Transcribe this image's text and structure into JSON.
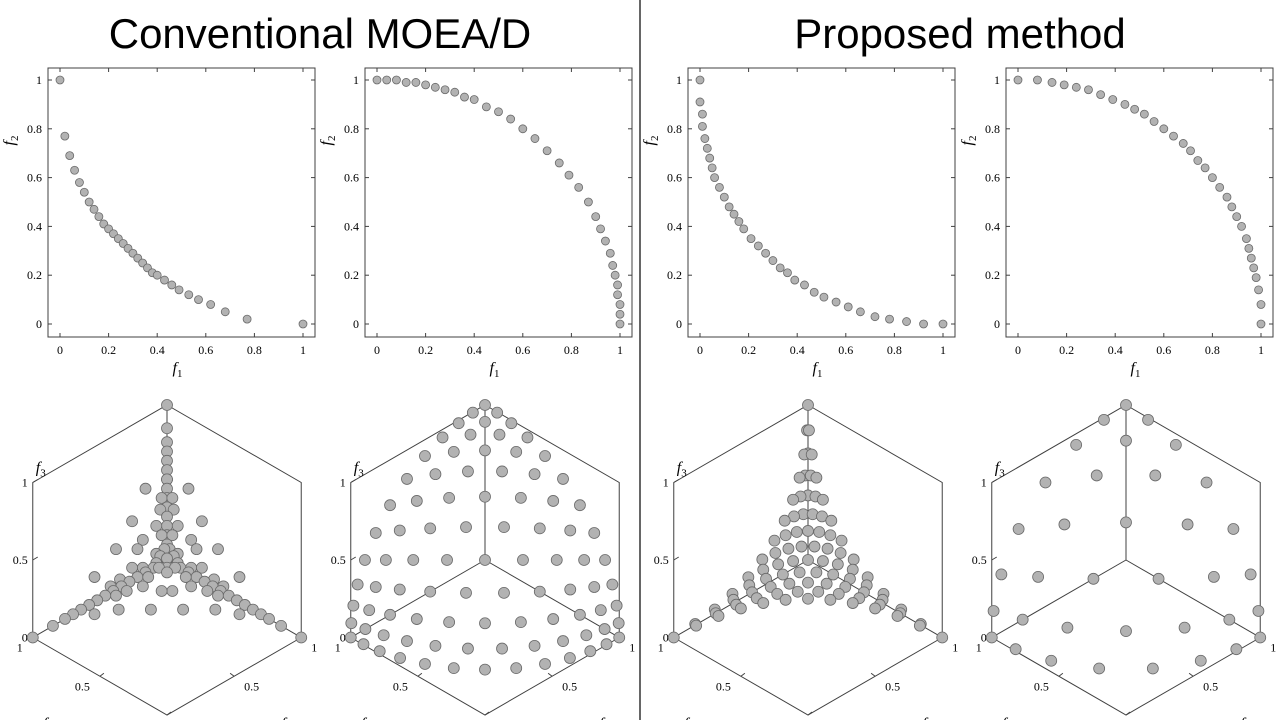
{
  "titles": {
    "left": "Conventional MOEA/D",
    "right": "Proposed method"
  },
  "labels": {
    "f1": "f",
    "f1_sub": "1",
    "f2": "f",
    "f2_sub": "2",
    "f3": "f",
    "f3_sub": "3"
  },
  "chart_data": [
    {
      "type": "scatter",
      "group": "Conventional MOEA/D",
      "xlabel": "f1",
      "ylabel": "f2",
      "xlim": [
        0,
        1
      ],
      "ylim": [
        0,
        1
      ],
      "xticks": [
        0,
        0.2,
        0.4,
        0.6,
        0.8,
        1
      ],
      "yticks": [
        0,
        0.2,
        0.4,
        0.6,
        0.8,
        1
      ],
      "grid": false,
      "points": [
        [
          0,
          1
        ],
        [
          0.02,
          0.77
        ],
        [
          0.04,
          0.69
        ],
        [
          0.06,
          0.63
        ],
        [
          0.08,
          0.58
        ],
        [
          0.1,
          0.54
        ],
        [
          0.12,
          0.5
        ],
        [
          0.14,
          0.47
        ],
        [
          0.16,
          0.44
        ],
        [
          0.18,
          0.41
        ],
        [
          0.2,
          0.39
        ],
        [
          0.22,
          0.37
        ],
        [
          0.24,
          0.35
        ],
        [
          0.26,
          0.33
        ],
        [
          0.28,
          0.31
        ],
        [
          0.3,
          0.29
        ],
        [
          0.32,
          0.27
        ],
        [
          0.34,
          0.25
        ],
        [
          0.36,
          0.23
        ],
        [
          0.38,
          0.21
        ],
        [
          0.4,
          0.2
        ],
        [
          0.43,
          0.18
        ],
        [
          0.46,
          0.16
        ],
        [
          0.49,
          0.14
        ],
        [
          0.53,
          0.12
        ],
        [
          0.57,
          0.1
        ],
        [
          0.62,
          0.08
        ],
        [
          0.68,
          0.05
        ],
        [
          0.77,
          0.02
        ],
        [
          1,
          0
        ]
      ]
    },
    {
      "type": "scatter",
      "group": "Conventional MOEA/D",
      "xlabel": "f1",
      "ylabel": "f2",
      "xlim": [
        0,
        1
      ],
      "ylim": [
        0,
        1
      ],
      "xticks": [
        0,
        0.2,
        0.4,
        0.6,
        0.8,
        1
      ],
      "yticks": [
        0,
        0.2,
        0.4,
        0.6,
        0.8,
        1
      ],
      "grid": false,
      "points": [
        [
          0,
          1
        ],
        [
          0.04,
          1
        ],
        [
          0.08,
          1
        ],
        [
          0.12,
          0.99
        ],
        [
          0.16,
          0.99
        ],
        [
          0.2,
          0.98
        ],
        [
          0.24,
          0.97
        ],
        [
          0.28,
          0.96
        ],
        [
          0.32,
          0.95
        ],
        [
          0.36,
          0.93
        ],
        [
          0.4,
          0.92
        ],
        [
          0.45,
          0.89
        ],
        [
          0.5,
          0.87
        ],
        [
          0.55,
          0.84
        ],
        [
          0.6,
          0.8
        ],
        [
          0.65,
          0.76
        ],
        [
          0.7,
          0.71
        ],
        [
          0.75,
          0.66
        ],
        [
          0.79,
          0.61
        ],
        [
          0.83,
          0.56
        ],
        [
          0.87,
          0.5
        ],
        [
          0.9,
          0.44
        ],
        [
          0.92,
          0.39
        ],
        [
          0.94,
          0.34
        ],
        [
          0.96,
          0.29
        ],
        [
          0.97,
          0.24
        ],
        [
          0.98,
          0.2
        ],
        [
          0.99,
          0.16
        ],
        [
          0.99,
          0.12
        ],
        [
          1,
          0.08
        ],
        [
          1,
          0.04
        ],
        [
          1,
          0
        ]
      ]
    },
    {
      "type": "scatter",
      "group": "Proposed method",
      "xlabel": "f1",
      "ylabel": "f2",
      "xlim": [
        0,
        1
      ],
      "ylim": [
        0,
        1
      ],
      "xticks": [
        0,
        0.2,
        0.4,
        0.6,
        0.8,
        1
      ],
      "yticks": [
        0,
        0.2,
        0.4,
        0.6,
        0.8,
        1
      ],
      "grid": false,
      "points": [
        [
          0,
          1
        ],
        [
          0,
          0.91
        ],
        [
          0.01,
          0.86
        ],
        [
          0.01,
          0.81
        ],
        [
          0.02,
          0.76
        ],
        [
          0.03,
          0.72
        ],
        [
          0.04,
          0.68
        ],
        [
          0.05,
          0.64
        ],
        [
          0.06,
          0.6
        ],
        [
          0.08,
          0.56
        ],
        [
          0.1,
          0.52
        ],
        [
          0.12,
          0.48
        ],
        [
          0.14,
          0.45
        ],
        [
          0.16,
          0.42
        ],
        [
          0.18,
          0.39
        ],
        [
          0.21,
          0.35
        ],
        [
          0.24,
          0.32
        ],
        [
          0.27,
          0.29
        ],
        [
          0.3,
          0.26
        ],
        [
          0.33,
          0.23
        ],
        [
          0.36,
          0.21
        ],
        [
          0.39,
          0.18
        ],
        [
          0.43,
          0.16
        ],
        [
          0.47,
          0.13
        ],
        [
          0.51,
          0.11
        ],
        [
          0.56,
          0.09
        ],
        [
          0.61,
          0.07
        ],
        [
          0.66,
          0.05
        ],
        [
          0.72,
          0.03
        ],
        [
          0.78,
          0.02
        ],
        [
          0.85,
          0.01
        ],
        [
          0.92,
          0
        ],
        [
          1,
          0
        ]
      ]
    },
    {
      "type": "scatter",
      "group": "Proposed method",
      "xlabel": "f1",
      "ylabel": "f2",
      "xlim": [
        0,
        1
      ],
      "ylim": [
        0,
        1
      ],
      "xticks": [
        0,
        0.2,
        0.4,
        0.6,
        0.8,
        1
      ],
      "yticks": [
        0,
        0.2,
        0.4,
        0.6,
        0.8,
        1
      ],
      "grid": false,
      "points": [
        [
          0,
          1
        ],
        [
          0.08,
          1
        ],
        [
          0.14,
          0.99
        ],
        [
          0.19,
          0.98
        ],
        [
          0.24,
          0.97
        ],
        [
          0.29,
          0.96
        ],
        [
          0.34,
          0.94
        ],
        [
          0.39,
          0.92
        ],
        [
          0.44,
          0.9
        ],
        [
          0.48,
          0.88
        ],
        [
          0.52,
          0.86
        ],
        [
          0.56,
          0.83
        ],
        [
          0.6,
          0.8
        ],
        [
          0.64,
          0.77
        ],
        [
          0.68,
          0.74
        ],
        [
          0.71,
          0.71
        ],
        [
          0.74,
          0.67
        ],
        [
          0.77,
          0.64
        ],
        [
          0.8,
          0.6
        ],
        [
          0.83,
          0.56
        ],
        [
          0.86,
          0.52
        ],
        [
          0.88,
          0.48
        ],
        [
          0.9,
          0.44
        ],
        [
          0.92,
          0.4
        ],
        [
          0.94,
          0.35
        ],
        [
          0.95,
          0.31
        ],
        [
          0.96,
          0.27
        ],
        [
          0.97,
          0.23
        ],
        [
          0.98,
          0.19
        ],
        [
          0.99,
          0.14
        ],
        [
          1,
          0.08
        ],
        [
          1,
          0
        ]
      ]
    },
    {
      "type": "scatter3d",
      "group": "Conventional MOEA/D",
      "front": "linear",
      "view": "isometric",
      "xlabel": "f1",
      "ylabel": "f2",
      "zlabel": "f3",
      "zticks": [
        0,
        0.5,
        1
      ],
      "f1ticks": [
        0.5,
        1
      ],
      "f2ticks": [
        0,
        0.5,
        1
      ],
      "points": [
        [
          0,
          0,
          1
        ],
        [
          1,
          0,
          0
        ],
        [
          0,
          1,
          0
        ],
        [
          0.05,
          0.05,
          0.9
        ],
        [
          0.08,
          0.08,
          0.84
        ],
        [
          0.1,
          0.1,
          0.8
        ],
        [
          0.12,
          0.12,
          0.76
        ],
        [
          0.14,
          0.14,
          0.72
        ],
        [
          0.16,
          0.16,
          0.68
        ],
        [
          0.18,
          0.18,
          0.64
        ],
        [
          0.2,
          0.2,
          0.6
        ],
        [
          0.22,
          0.22,
          0.56
        ],
        [
          0.24,
          0.24,
          0.52
        ],
        [
          0.26,
          0.26,
          0.48
        ],
        [
          0.28,
          0.28,
          0.44
        ],
        [
          0.9,
          0.05,
          0.05
        ],
        [
          0.84,
          0.08,
          0.08
        ],
        [
          0.8,
          0.1,
          0.1
        ],
        [
          0.76,
          0.12,
          0.12
        ],
        [
          0.72,
          0.14,
          0.14
        ],
        [
          0.68,
          0.16,
          0.16
        ],
        [
          0.64,
          0.18,
          0.18
        ],
        [
          0.6,
          0.2,
          0.2
        ],
        [
          0.56,
          0.22,
          0.22
        ],
        [
          0.52,
          0.24,
          0.24
        ],
        [
          0.48,
          0.26,
          0.26
        ],
        [
          0.44,
          0.28,
          0.28
        ],
        [
          0.05,
          0.9,
          0.05
        ],
        [
          0.08,
          0.84,
          0.08
        ],
        [
          0.1,
          0.8,
          0.1
        ],
        [
          0.12,
          0.76,
          0.12
        ],
        [
          0.14,
          0.72,
          0.14
        ],
        [
          0.16,
          0.68,
          0.16
        ],
        [
          0.18,
          0.64,
          0.18
        ],
        [
          0.2,
          0.6,
          0.2
        ],
        [
          0.22,
          0.56,
          0.22
        ],
        [
          0.24,
          0.52,
          0.24
        ],
        [
          0.26,
          0.48,
          0.26
        ],
        [
          0.28,
          0.44,
          0.28
        ],
        [
          0.16,
          0.16,
          0.68
        ],
        [
          0.3,
          0.3,
          0.4
        ],
        [
          0.3,
          0.4,
          0.3
        ],
        [
          0.4,
          0.3,
          0.3
        ],
        [
          0.33,
          0.33,
          0.34
        ],
        [
          0.26,
          0.3,
          0.44
        ],
        [
          0.3,
          0.26,
          0.44
        ],
        [
          0.44,
          0.26,
          0.3
        ],
        [
          0.44,
          0.3,
          0.26
        ],
        [
          0.26,
          0.44,
          0.3
        ],
        [
          0.3,
          0.44,
          0.26
        ],
        [
          0.22,
          0.3,
          0.48
        ],
        [
          0.3,
          0.22,
          0.48
        ],
        [
          0.48,
          0.22,
          0.3
        ],
        [
          0.48,
          0.3,
          0.22
        ],
        [
          0.22,
          0.48,
          0.3
        ],
        [
          0.3,
          0.48,
          0.22
        ],
        [
          0.2,
          0.25,
          0.55
        ],
        [
          0.25,
          0.2,
          0.55
        ],
        [
          0.55,
          0.2,
          0.25
        ],
        [
          0.55,
          0.25,
          0.2
        ],
        [
          0.2,
          0.55,
          0.25
        ],
        [
          0.25,
          0.55,
          0.2
        ],
        [
          0.18,
          0.22,
          0.6
        ],
        [
          0.22,
          0.18,
          0.6
        ],
        [
          0.6,
          0.18,
          0.22
        ],
        [
          0.6,
          0.22,
          0.18
        ],
        [
          0.18,
          0.6,
          0.22
        ],
        [
          0.22,
          0.6,
          0.18
        ],
        [
          0.35,
          0.35,
          0.3
        ],
        [
          0.35,
          0.3,
          0.35
        ],
        [
          0.3,
          0.35,
          0.35
        ],
        [
          0.38,
          0.32,
          0.3
        ],
        [
          0.32,
          0.38,
          0.3
        ],
        [
          0.38,
          0.3,
          0.32
        ],
        [
          0.32,
          0.3,
          0.38
        ],
        [
          0.3,
          0.38,
          0.32
        ],
        [
          0.3,
          0.32,
          0.38
        ],
        [
          0.42,
          0.38,
          0.2
        ],
        [
          0.38,
          0.42,
          0.2
        ],
        [
          0.2,
          0.38,
          0.42
        ],
        [
          0.2,
          0.42,
          0.38
        ],
        [
          0.42,
          0.2,
          0.38
        ],
        [
          0.38,
          0.2,
          0.42
        ],
        [
          0.36,
          0.36,
          0.28
        ],
        [
          0.28,
          0.36,
          0.36
        ],
        [
          0.36,
          0.28,
          0.36
        ],
        [
          0.5,
          0.38,
          0.12
        ],
        [
          0.38,
          0.5,
          0.12
        ],
        [
          0.62,
          0.26,
          0.12
        ],
        [
          0.26,
          0.62,
          0.12
        ],
        [
          0.72,
          0.18,
          0.1
        ],
        [
          0.18,
          0.72,
          0.1
        ],
        [
          0.12,
          0.38,
          0.5
        ],
        [
          0.12,
          0.5,
          0.38
        ],
        [
          0.38,
          0.12,
          0.5
        ],
        [
          0.5,
          0.12,
          0.38
        ],
        [
          0.1,
          0.26,
          0.64
        ],
        [
          0.26,
          0.1,
          0.64
        ],
        [
          0.64,
          0.1,
          0.26
        ],
        [
          0.1,
          0.64,
          0.26
        ]
      ]
    },
    {
      "type": "scatter3d",
      "group": "Conventional MOEA/D",
      "front": "concave",
      "view": "isometric",
      "xlabel": "f1",
      "ylabel": "f2",
      "zlabel": "f3",
      "zticks": [
        0,
        0.5,
        1
      ],
      "f1ticks": [
        0.5,
        1
      ],
      "f2ticks": [
        0,
        0.5,
        1
      ],
      "grid_size": 12,
      "note": "points uniformly spread on the sphere octant f1^2+f2^2+f3^2=1"
    },
    {
      "type": "scatter3d",
      "group": "Proposed method",
      "front": "convex",
      "view": "isometric",
      "xlabel": "f1",
      "ylabel": "f2",
      "zlabel": "f3",
      "zticks": [
        0,
        0.5,
        1
      ],
      "f1ticks": [
        0.5,
        1
      ],
      "f2ticks": [
        0,
        0.5,
        1
      ],
      "grid_size": 12,
      "note": "points uniformly spread on the convex front (sum of sqrt(fi) = 1)"
    },
    {
      "type": "scatter3d",
      "group": "Proposed method",
      "front": "concave",
      "view": "isometric",
      "xlabel": "f1",
      "ylabel": "f2",
      "zlabel": "f3",
      "zticks": [
        0,
        0.5,
        1
      ],
      "f1ticks": [
        0.5,
        1
      ],
      "f2ticks": [
        0,
        0.5,
        1
      ],
      "grid_size": 7,
      "note": "points uniformly spread on the sphere octant f1^2+f2^2+f3^2=1"
    }
  ]
}
